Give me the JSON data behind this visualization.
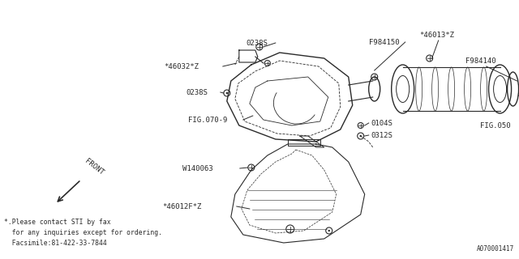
{
  "bg_color": "#ffffff",
  "line_color": "#2a2a2a",
  "text_color": "#2a2a2a",
  "fig_width": 6.4,
  "fig_height": 3.2,
  "footnote_lines": [
    "*.Please contact STI by fax",
    "  for any inquiries except for ordering.",
    "  Facsimile:81-422-33-7844"
  ],
  "doc_id": "A070001417"
}
